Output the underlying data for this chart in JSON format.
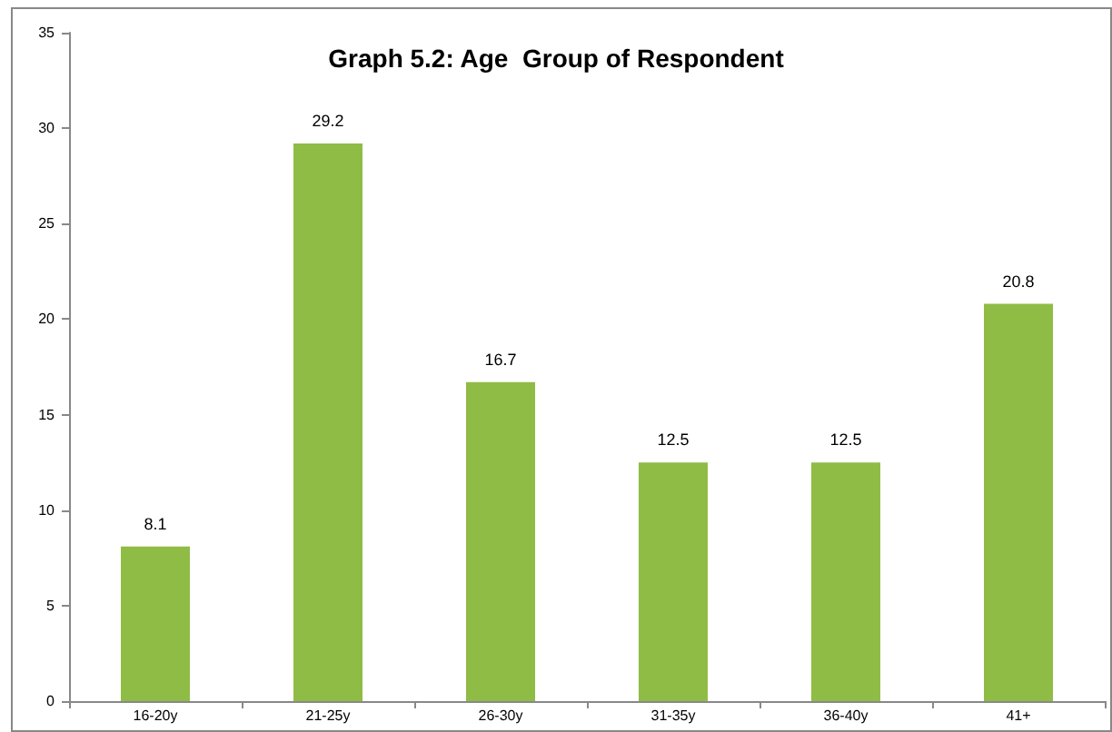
{
  "chart_data": {
    "type": "bar",
    "title": "Graph 5.2: Age  Group of Respondent",
    "categories": [
      "16-20y",
      "21-25y",
      "26-30y",
      "31-35y",
      "36-40y",
      "41+"
    ],
    "values": [
      8.1,
      29.2,
      16.7,
      12.5,
      12.5,
      20.8
    ],
    "color": "#8fbc45",
    "ylim": [
      0,
      35
    ],
    "yticks": [
      0,
      5,
      10,
      15,
      20,
      25,
      30,
      35
    ],
    "grid": false,
    "data_labels": true
  }
}
